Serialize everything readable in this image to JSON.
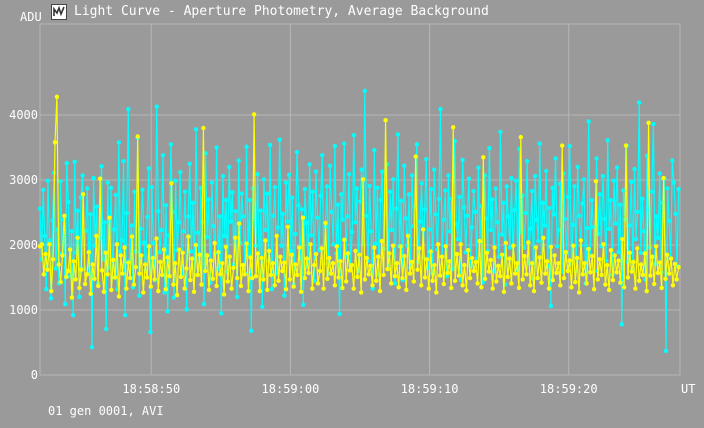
{
  "window": {
    "title": "Light Curve - Aperture Photometry, Average Background",
    "icon": "light-curve-app-icon"
  },
  "footer": {
    "text": "01 gen 0001, AVI"
  },
  "colors": {
    "background": "#9a9a9a",
    "grid": "#b6b6b6",
    "axis_text": "#ffffff",
    "series_object": "#ffff00",
    "series_comparison": "#00ffff"
  },
  "chart_data": {
    "type": "line",
    "title": "Light Curve - Aperture Photometry, Average Background",
    "ylabel": "ADU",
    "xlabel": "UT",
    "x_unit": "seconds past 18:58:00 UT",
    "xlim": [
      42.0,
      88.0
    ],
    "ylim": [
      0,
      5400
    ],
    "x_ticks": [
      {
        "value": 50,
        "label": "18:58:50"
      },
      {
        "value": 60,
        "label": "18:59:00"
      },
      {
        "value": 70,
        "label": "18:59:10"
      },
      {
        "value": 80,
        "label": "18:59:20"
      }
    ],
    "y_ticks": [
      {
        "value": 0,
        "label": "0"
      },
      {
        "value": 1000,
        "label": "1000"
      },
      {
        "value": 2000,
        "label": "2000"
      },
      {
        "value": 3000,
        "label": "3000"
      },
      {
        "value": 4000,
        "label": "4000"
      }
    ],
    "grid": true,
    "series": [
      {
        "color": "#00ffff",
        "x_start": 42.0,
        "x_end": 87.9,
        "values": [
          2560,
          1780,
          2850,
          2140,
          1320,
          2990,
          2070,
          1180,
          2380,
          3110,
          1640,
          2240,
          1410,
          2980,
          1870,
          2390,
          1090,
          3260,
          2660,
          1520,
          2210,
          920,
          3280,
          1880,
          2530,
          1200,
          2730,
          3070,
          1640,
          2220,
          2870,
          1560,
          2470,
          430,
          3030,
          1990,
          2590,
          1410,
          2110,
          3210,
          1780,
          2350,
          710,
          2960,
          1650,
          2880,
          1500,
          2240,
          2770,
          1320,
          3580,
          1900,
          2070,
          3290,
          920,
          2490,
          4090,
          1760,
          2300,
          1350,
          2820,
          1900,
          3650,
          1220,
          2250,
          2850,
          2040,
          1610,
          2430,
          3180,
          660,
          2890,
          2030,
          1460,
          4130,
          2520,
          1890,
          2230,
          3380,
          1270,
          2610,
          980,
          2150,
          3550,
          2510,
          1190,
          2990,
          1920,
          2350,
          3120,
          1560,
          2210,
          2820,
          1010,
          2440,
          3250,
          1900,
          2650,
          1540,
          3780,
          2190,
          1620,
          2880,
          2350,
          1090,
          3410,
          2120,
          2700,
          1420,
          2960,
          2290,
          1870,
          3500,
          1630,
          2440,
          950,
          3060,
          2140,
          2690,
          1590,
          3200,
          2360,
          2810,
          1700,
          2520,
          1200,
          3300,
          2030,
          2790,
          2440,
          1560,
          3510,
          1840,
          2690,
          680,
          2870,
          2410,
          1990,
          3090,
          1600,
          2530,
          1050,
          3010,
          2230,
          2790,
          1760,
          3540,
          1320,
          2450,
          2890,
          1560,
          2270,
          3620,
          1990,
          2480,
          1220,
          2960,
          2360,
          3080,
          1910,
          2730,
          1390,
          2170,
          3430,
          2610,
          1790,
          2550,
          1080,
          2860,
          2340,
          1670,
          3240,
          2150,
          2820,
          1450,
          3130,
          2420,
          1920,
          2760,
          3380,
          1710,
          2280,
          2900,
          1560,
          3220,
          2510,
          2010,
          3520,
          1870,
          2620,
          940,
          2780,
          2390,
          3560,
          1820,
          2440,
          3090,
          1690,
          2200,
          3690,
          2350,
          2870,
          1600,
          2670,
          3160,
          2010,
          4370,
          2450,
          1760,
          2910,
          2210,
          1330,
          3460,
          2020,
          2880,
          1550,
          2690,
          3130,
          1940,
          2480,
          3240,
          1640,
          2820,
          2230,
          3010,
          1410,
          2560,
          3700,
          1980,
          2680,
          1460,
          3220,
          2410,
          1990,
          2780,
          1650,
          3070,
          2290,
          2590,
          3550,
          1740,
          2360,
          2950,
          1810,
          2550,
          3320,
          1650,
          2240,
          2860,
          1560,
          3160,
          2470,
          1930,
          2710,
          4090,
          1820,
          2390,
          2840,
          1520,
          3070,
          2210,
          2710,
          1630,
          3600,
          2320,
          2090,
          2740,
          1460,
          3310,
          2580,
          1890,
          2450,
          3020,
          1680,
          2270,
          2830,
          2510,
          1790,
          3190,
          2050,
          2600,
          1430,
          3070,
          2410,
          1910,
          3490,
          2230,
          2700,
          1600,
          2870,
          2350,
          1820,
          3740,
          2160,
          2650,
          1390,
          2900,
          2440,
          1960,
          3030,
          1760,
          2540,
          2990,
          1620,
          3480,
          2200,
          2760,
          1960,
          2490,
          3290,
          1720,
          2250,
          2830,
          1480,
          3060,
          2390,
          2060,
          3560,
          1800,
          2650,
          2300,
          3140,
          1670,
          2570,
          1060,
          2880,
          2470,
          3330,
          1980,
          2230,
          2940,
          1590,
          3100,
          2400,
          1870,
          2740,
          3520,
          1710,
          2310,
          2900,
          1610,
          3200,
          2450,
          1990,
          2640,
          3010,
          1410,
          2260,
          3900,
          1840,
          2690,
          2280,
          1600,
          3330,
          2170,
          2780,
          1980,
          3060,
          2400,
          1760,
          3610,
          2250,
          2690,
          1540,
          2990,
          2330,
          3190,
          1890,
          2620,
          780,
          2840,
          2390,
          3530,
          1740,
          2300,
          2970,
          1620,
          3170,
          2090,
          2510,
          4190,
          1880,
          2710,
          2210,
          1470,
          3370,
          2560,
          1960,
          2820,
          3860,
          1710,
          2440,
          2110,
          3100,
          1580,
          2650,
          3020,
          370,
          2870,
          2370,
          1790,
          3300,
          2960,
          2480,
          1680,
          2860
        ]
      },
      {
        "color": "#ffff00",
        "x_start": 42.0,
        "x_end": 87.9,
        "values": [
          1980,
          2010,
          1550,
          1860,
          1620,
          2010,
          1290,
          1780,
          3580,
          4280,
          1700,
          1430,
          1840,
          2450,
          1510,
          1600,
          1930,
          1190,
          1750,
          1470,
          2110,
          1340,
          1620,
          2780,
          1400,
          1550,
          1890,
          1250,
          1700,
          1480,
          2140,
          1370,
          3020,
          1610,
          1280,
          1880,
          1550,
          2420,
          1310,
          1770,
          1500,
          2010,
          1210,
          1840,
          1560,
          1960,
          1330,
          1730,
          1490,
          2130,
          1390,
          1660,
          3670,
          1560,
          1840,
          1270,
          1700,
          1500,
          1980,
          1360,
          1800,
          1470,
          2100,
          1290,
          1740,
          1540,
          1930,
          1320,
          1810,
          1520,
          2950,
          1390,
          1720,
          1230,
          1930,
          1510,
          1880,
          1330,
          1640,
          2130,
          1460,
          1790,
          1280,
          2000,
          1540,
          1850,
          1390,
          3800,
          1600,
          1840,
          1310,
          1760,
          1480,
          2030,
          1370,
          1890,
          1550,
          1720,
          1240,
          1970,
          1440,
          1820,
          1330,
          1650,
          2110,
          1490,
          2330,
          1370,
          1690,
          1550,
          2020,
          1290,
          1810,
          1490,
          4010,
          1520,
          1870,
          1290,
          1800,
          1470,
          2070,
          1310,
          1910,
          1540,
          1720,
          1380,
          2140,
          1450,
          1820,
          1600,
          1730,
          1320,
          2280,
          1470,
          1850,
          1360,
          1700,
          1540,
          1960,
          1280,
          2420,
          1490,
          1790,
          1570,
          2010,
          1330,
          1690,
          1860,
          1410,
          1600,
          1950,
          1330,
          2340,
          1480,
          1800,
          1560,
          1720,
          1380,
          1980,
          1500,
          1750,
          1340,
          2080,
          1440,
          1870,
          1610,
          1690,
          1330,
          1910,
          1510,
          1850,
          1270,
          3010,
          1470,
          1800,
          1550,
          1680,
          1380,
          1960,
          1450,
          1820,
          1290,
          2060,
          1540,
          3920,
          1630,
          1870,
          1410,
          1990,
          1520,
          1720,
          1350,
          1980,
          1490,
          1830,
          1310,
          2140,
          1560,
          1740,
          1440,
          3360,
          1620,
          1950,
          1380,
          2240,
          1500,
          1780,
          1330,
          1900,
          1450,
          1690,
          1270,
          2010,
          1530,
          1820,
          1400,
          1980,
          1570,
          1750,
          1340,
          3810,
          1450,
          1860,
          1530,
          2010,
          1380,
          1690,
          1300,
          1920,
          1490,
          1800,
          1600,
          1740,
          1410,
          2060,
          1350,
          3350,
          1480,
          1880,
          1590,
          1770,
          1330,
          1960,
          1440,
          1680,
          1520,
          1850,
          1280,
          2030,
          1510,
          1790,
          1410,
          1990,
          1560,
          1720,
          1340,
          3660,
          1470,
          1830,
          1550,
          2040,
          1380,
          1720,
          1290,
          1960,
          1490,
          1810,
          1420,
          2110,
          1560,
          1750,
          1330,
          1970,
          1460,
          1840,
          1570,
          1720,
          1380,
          3530,
          1490,
          1890,
          1600,
          1760,
          1350,
          1990,
          1430,
          1800,
          1270,
          2070,
          1550,
          1720,
          1410,
          1940,
          1580,
          1830,
          1320,
          2980,
          1470,
          1780,
          1540,
          2010,
          1390,
          1690,
          1310,
          1920,
          1460,
          1840,
          1580,
          1760,
          1420,
          2090,
          1350,
          3530,
          1500,
          1880,
          1590,
          1740,
          1330,
          1950,
          1450,
          1700,
          1540,
          1870,
          1290,
          3880,
          1530,
          1820,
          1400,
          1980,
          1570,
          1730,
          1340,
          3030,
          1480,
          1850,
          1560,
          1790,
          1380,
          1710,
          1470,
          1660
        ]
      }
    ]
  }
}
